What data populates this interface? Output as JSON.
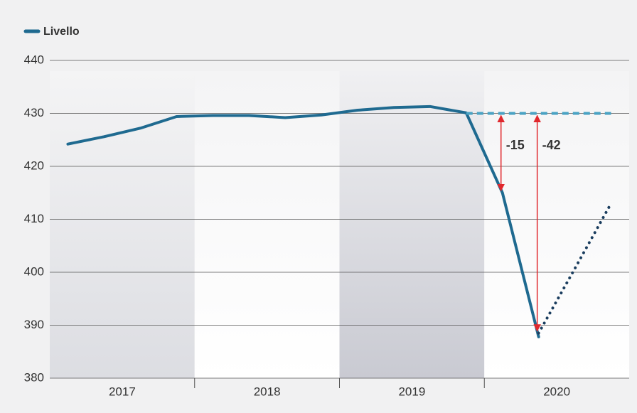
{
  "chart_data": {
    "type": "line",
    "legend": "top-left",
    "categories": [
      null,
      null,
      null,
      null,
      null,
      null,
      null,
      null,
      null,
      null,
      null,
      null,
      null,
      null,
      null,
      null
    ],
    "year_labels": [
      "2017",
      "2018",
      "2019",
      "2020"
    ],
    "series": [
      {
        "name": "Livello",
        "color": "#1f6a90",
        "style": "solid",
        "values": [
          424.2,
          425.6,
          427.2,
          429.4,
          429.6,
          429.6,
          429.2,
          429.7,
          430.6,
          431.1,
          431.3,
          430.1,
          415,
          387.8,
          null,
          null
        ]
      },
      {
        "color": "#1a3d5e",
        "style": "dotted",
        "values": [
          null,
          null,
          null,
          null,
          null,
          null,
          null,
          null,
          null,
          null,
          null,
          null,
          null,
          388.5,
          400.7,
          413
        ]
      },
      {
        "color": "#4aa3c4",
        "style": "dashed",
        "values": [
          null,
          null,
          null,
          null,
          null,
          null,
          null,
          null,
          null,
          null,
          null,
          430,
          430,
          430,
          430,
          430
        ]
      }
    ],
    "annotations": [
      {
        "text": "-15",
        "category": 12,
        "from": 430,
        "to": 415
      },
      {
        "text": "-42",
        "category": 13,
        "from": 430,
        "to": 388.5
      }
    ],
    "ylim": [
      380,
      440
    ],
    "yticks": [
      380,
      390,
      400,
      410,
      420,
      430,
      440
    ],
    "grid": true
  }
}
